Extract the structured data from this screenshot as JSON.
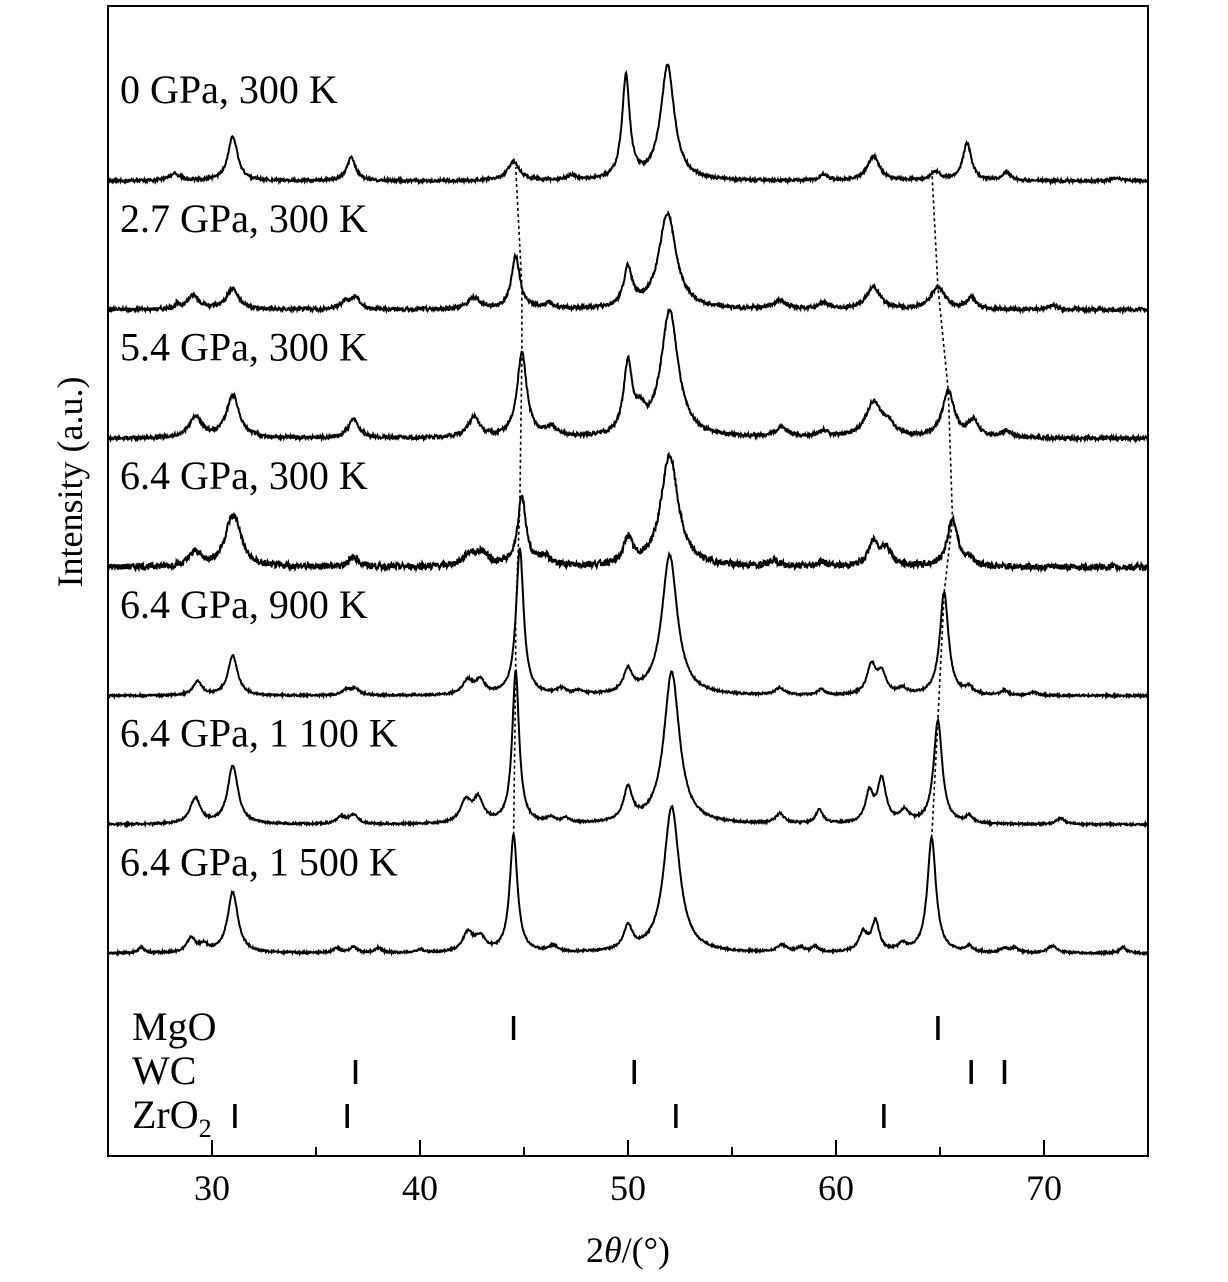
{
  "chart_data": {
    "type": "line",
    "title": "",
    "xlabel_prefix": "2",
    "xlabel_var": "θ",
    "xlabel_suffix": "/(°)",
    "ylabel": "Intensity (a.u.)",
    "xlim": [
      25,
      75
    ],
    "xticks": [
      30,
      40,
      50,
      60,
      70
    ],
    "xtick_labels": [
      "30",
      "40",
      "50",
      "60",
      "70"
    ],
    "series": [
      {
        "name": "6.4 GPa, 1 500 K",
        "baseline": 1.1,
        "noise": 0.008,
        "peaks": [
          [
            26.6,
            0.05,
            0.15
          ],
          [
            29.0,
            0.12,
            0.25
          ],
          [
            29.6,
            0.06,
            0.25
          ],
          [
            31.0,
            0.52,
            0.3
          ],
          [
            36.0,
            0.04,
            0.2
          ],
          [
            36.8,
            0.05,
            0.2
          ],
          [
            38.0,
            0.04,
            0.2
          ],
          [
            40.0,
            0.03,
            0.2
          ],
          [
            42.3,
            0.16,
            0.3
          ],
          [
            42.9,
            0.12,
            0.3
          ],
          [
            44.5,
            1.0,
            0.22
          ],
          [
            46.4,
            0.05,
            0.25
          ],
          [
            50.0,
            0.2,
            0.25
          ],
          [
            52.1,
            1.25,
            0.45
          ],
          [
            57.4,
            0.06,
            0.3
          ],
          [
            58.3,
            0.04,
            0.2
          ],
          [
            59.0,
            0.05,
            0.2
          ],
          [
            61.3,
            0.16,
            0.25
          ],
          [
            61.9,
            0.26,
            0.22
          ],
          [
            63.2,
            0.06,
            0.25
          ],
          [
            64.6,
            0.98,
            0.25
          ],
          [
            66.4,
            0.05,
            0.2
          ],
          [
            68.1,
            0.04,
            0.2
          ],
          [
            68.6,
            0.04,
            0.2
          ],
          [
            70.4,
            0.06,
            0.25
          ],
          [
            73.8,
            0.05,
            0.2
          ]
        ]
      },
      {
        "name": "6.4 GPa, 1 100 K",
        "baseline": 2.2,
        "noise": 0.008,
        "peaks": [
          [
            29.2,
            0.22,
            0.3
          ],
          [
            31.0,
            0.5,
            0.3
          ],
          [
            36.2,
            0.06,
            0.25
          ],
          [
            36.8,
            0.08,
            0.25
          ],
          [
            42.2,
            0.18,
            0.3
          ],
          [
            42.8,
            0.2,
            0.3
          ],
          [
            44.6,
            1.3,
            0.2
          ],
          [
            46.3,
            0.04,
            0.25
          ],
          [
            47.0,
            0.04,
            0.2
          ],
          [
            50.0,
            0.28,
            0.25
          ],
          [
            52.1,
            1.3,
            0.45
          ],
          [
            57.3,
            0.08,
            0.25
          ],
          [
            59.2,
            0.12,
            0.2
          ],
          [
            61.6,
            0.25,
            0.22
          ],
          [
            62.2,
            0.37,
            0.25
          ],
          [
            63.3,
            0.1,
            0.25
          ],
          [
            64.9,
            0.88,
            0.25
          ],
          [
            66.4,
            0.06,
            0.2
          ],
          [
            70.8,
            0.05,
            0.25
          ]
        ]
      },
      {
        "name": "6.4 GPa, 900 K",
        "baseline": 3.3,
        "noise": 0.008,
        "peaks": [
          [
            29.3,
            0.12,
            0.25
          ],
          [
            31.0,
            0.34,
            0.28
          ],
          [
            36.5,
            0.05,
            0.25
          ],
          [
            36.9,
            0.05,
            0.25
          ],
          [
            42.3,
            0.12,
            0.3
          ],
          [
            42.9,
            0.12,
            0.25
          ],
          [
            44.8,
            1.25,
            0.22
          ],
          [
            46.8,
            0.05,
            0.25
          ],
          [
            47.6,
            0.03,
            0.2
          ],
          [
            50.0,
            0.19,
            0.25
          ],
          [
            52.0,
            1.2,
            0.45
          ],
          [
            57.3,
            0.06,
            0.25
          ],
          [
            59.3,
            0.05,
            0.2
          ],
          [
            61.7,
            0.25,
            0.25
          ],
          [
            62.2,
            0.18,
            0.25
          ],
          [
            63.2,
            0.05,
            0.25
          ],
          [
            65.2,
            0.88,
            0.25
          ],
          [
            66.4,
            0.06,
            0.2
          ],
          [
            68.1,
            0.04,
            0.2
          ],
          [
            69.5,
            0.03,
            0.2
          ]
        ]
      },
      {
        "name": "6.4 GPa, 300 K",
        "baseline": 4.4,
        "noise": 0.028,
        "peaks": [
          [
            29.2,
            0.12,
            0.35
          ],
          [
            30.9,
            0.3,
            0.4
          ],
          [
            31.2,
            0.2,
            0.35
          ],
          [
            36.8,
            0.08,
            0.3
          ],
          [
            42.4,
            0.1,
            0.4
          ],
          [
            43.0,
            0.1,
            0.35
          ],
          [
            44.9,
            0.58,
            0.25
          ],
          [
            46.0,
            0.08,
            0.3
          ],
          [
            50.0,
            0.22,
            0.25
          ],
          [
            52.0,
            0.95,
            0.5
          ],
          [
            57.0,
            0.05,
            0.3
          ],
          [
            59.3,
            0.04,
            0.25
          ],
          [
            61.8,
            0.2,
            0.3
          ],
          [
            62.4,
            0.15,
            0.3
          ],
          [
            65.6,
            0.4,
            0.3
          ],
          [
            66.4,
            0.06,
            0.25
          ]
        ]
      },
      {
        "name": "5.4 GPa, 300 K",
        "baseline": 5.5,
        "noise": 0.016,
        "peaks": [
          [
            29.2,
            0.18,
            0.35
          ],
          [
            31.0,
            0.36,
            0.38
          ],
          [
            36.8,
            0.16,
            0.3
          ],
          [
            42.6,
            0.17,
            0.35
          ],
          [
            44.9,
            0.72,
            0.28
          ],
          [
            46.3,
            0.08,
            0.3
          ],
          [
            50.0,
            0.6,
            0.25
          ],
          [
            50.6,
            0.14,
            0.25
          ],
          [
            52.0,
            1.08,
            0.5
          ],
          [
            57.4,
            0.08,
            0.4
          ],
          [
            59.4,
            0.05,
            0.3
          ],
          [
            61.8,
            0.29,
            0.45
          ],
          [
            62.5,
            0.1,
            0.35
          ],
          [
            65.4,
            0.39,
            0.35
          ],
          [
            66.6,
            0.14,
            0.3
          ],
          [
            68.2,
            0.06,
            0.25
          ]
        ]
      },
      {
        "name": "2.7 GPa, 300 K",
        "baseline": 6.6,
        "noise": 0.016,
        "peaks": [
          [
            28.3,
            0.04,
            0.1
          ],
          [
            29.1,
            0.12,
            0.35
          ],
          [
            31.0,
            0.18,
            0.35
          ],
          [
            36.4,
            0.07,
            0.25
          ],
          [
            36.9,
            0.1,
            0.25
          ],
          [
            42.6,
            0.1,
            0.35
          ],
          [
            44.6,
            0.45,
            0.25
          ],
          [
            46.2,
            0.04,
            0.3
          ],
          [
            50.0,
            0.33,
            0.25
          ],
          [
            51.9,
            0.82,
            0.5
          ],
          [
            57.3,
            0.07,
            0.4
          ],
          [
            59.4,
            0.05,
            0.3
          ],
          [
            61.8,
            0.19,
            0.4
          ],
          [
            64.9,
            0.19,
            0.4
          ],
          [
            66.5,
            0.1,
            0.25
          ],
          [
            70.4,
            0.04,
            0.25
          ]
        ]
      },
      {
        "name": "0 GPa, 300 K",
        "baseline": 7.7,
        "noise": 0.012,
        "peaks": [
          [
            28.2,
            0.06,
            0.35
          ],
          [
            31.0,
            0.38,
            0.28
          ],
          [
            36.7,
            0.2,
            0.25
          ],
          [
            44.5,
            0.16,
            0.35
          ],
          [
            47.3,
            0.04,
            0.25
          ],
          [
            49.9,
            0.88,
            0.22
          ],
          [
            51.9,
            0.98,
            0.4
          ],
          [
            59.4,
            0.05,
            0.25
          ],
          [
            61.8,
            0.21,
            0.35
          ],
          [
            64.8,
            0.07,
            0.3
          ],
          [
            66.3,
            0.32,
            0.25
          ],
          [
            68.2,
            0.07,
            0.25
          ],
          [
            73.5,
            0.03,
            0.25
          ]
        ]
      }
    ],
    "guides": [
      [
        44.5,
        44.6,
        44.6,
        44.8,
        44.9,
        44.9,
        44.6
      ],
      [
        64.6,
        64.9,
        65.2,
        65.6,
        65.4,
        64.9,
        64.6
      ]
    ],
    "reference": [
      {
        "label": "MgO",
        "sub": "",
        "ticks": [
          44.5,
          64.9
        ]
      },
      {
        "label": "WC",
        "sub": "",
        "ticks": [
          36.9,
          50.3,
          66.5,
          68.1
        ]
      },
      {
        "label": "ZrO",
        "sub": "2",
        "ticks": [
          31.1,
          36.5,
          52.3,
          62.3
        ]
      }
    ]
  }
}
